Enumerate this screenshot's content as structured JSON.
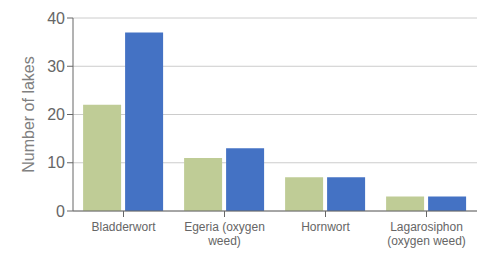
{
  "chart_data": {
    "type": "bar",
    "categories": [
      "Bladderwort",
      "Egeria (oxygen\nweed)",
      "Hornwort",
      "Lagarosiphon\n(oxygen weed)"
    ],
    "series": [
      {
        "color": "#bfcc96",
        "values": [
          22,
          11,
          7,
          3
        ]
      },
      {
        "color": "#4472c4",
        "values": [
          37,
          13,
          7,
          3
        ]
      }
    ],
    "ylabel": "Number of lakes",
    "ylim": [
      0,
      40
    ],
    "yticks": [
      0,
      10,
      20,
      30,
      40
    ],
    "grid": true
  }
}
